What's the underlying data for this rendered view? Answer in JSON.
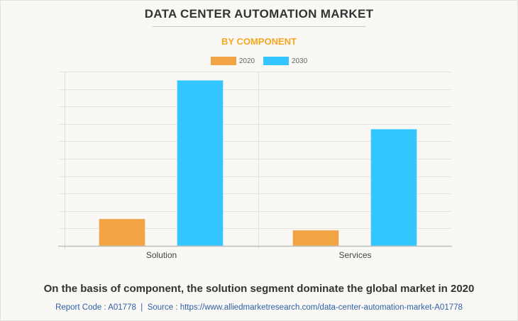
{
  "header": {
    "title": "DATA CENTER AUTOMATION MARKET",
    "subtitle": "BY COMPONENT"
  },
  "colors": {
    "series_2020": "#f2a444",
    "series_2030": "#33c5fe",
    "subtitle": "#f5a623",
    "source_link": "#2f5fa7"
  },
  "chart_data": {
    "type": "bar",
    "title": "DATA CENTER AUTOMATION MARKET",
    "subtitle": "BY COMPONENT",
    "categories": [
      "Solution",
      "Services"
    ],
    "series": [
      {
        "name": "2020",
        "values": [
          1.55,
          0.9
        ]
      },
      {
        "name": "2030",
        "values": [
          9.5,
          6.7
        ]
      }
    ],
    "xlabel": "",
    "ylabel": "",
    "ylim": [
      0,
      10
    ],
    "y_tick_count": 10,
    "y_tick_labels_shown": false,
    "grid": true,
    "legend": "top-center",
    "units_note": "Relative values estimated from gridlines (no axis labels shown)"
  },
  "footer": {
    "insight": "On the basis of component, the solution segment dominate the global market in 2020",
    "report_code_label": "Report Code : A01778",
    "separator": "|",
    "source_label": "Source : https://www.alliedmarketresearch.com/data-center-automation-market-A01778"
  }
}
